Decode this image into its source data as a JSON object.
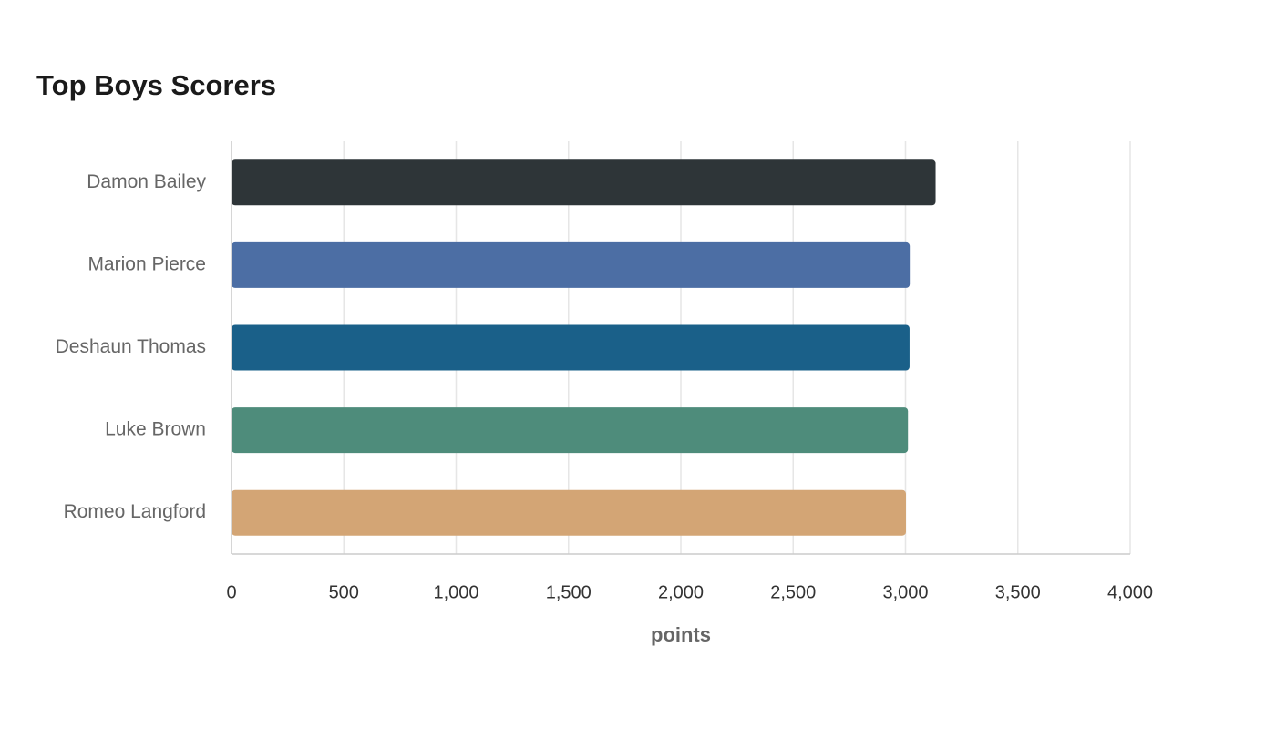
{
  "chart_data": {
    "type": "bar",
    "orientation": "horizontal",
    "title": "Top Boys Scorers",
    "categories": [
      "Damon Bailey",
      "Marion Pierce",
      "Deshaun Thomas",
      "Luke Brown",
      "Romeo Langford"
    ],
    "values": [
      3134,
      3019,
      3018,
      3011,
      3002
    ],
    "colors": [
      "#2e3538",
      "#4c6ea4",
      "#1a6089",
      "#4e8c7b",
      "#d3a575"
    ],
    "xlabel": "points",
    "xlim": [
      0,
      4000
    ],
    "xticks": [
      0,
      500,
      {
        "value": 1000,
        "label": "1,000"
      },
      {
        "value": 1500,
        "label": "1,500"
      },
      {
        "value": 2000,
        "label": "2,000"
      },
      {
        "value": 2500,
        "label": "2,500"
      },
      {
        "value": 3000,
        "label": "3,000"
      },
      {
        "value": 3500,
        "label": "3,500"
      },
      {
        "value": 4000,
        "label": "4,000"
      }
    ],
    "grid": true
  }
}
